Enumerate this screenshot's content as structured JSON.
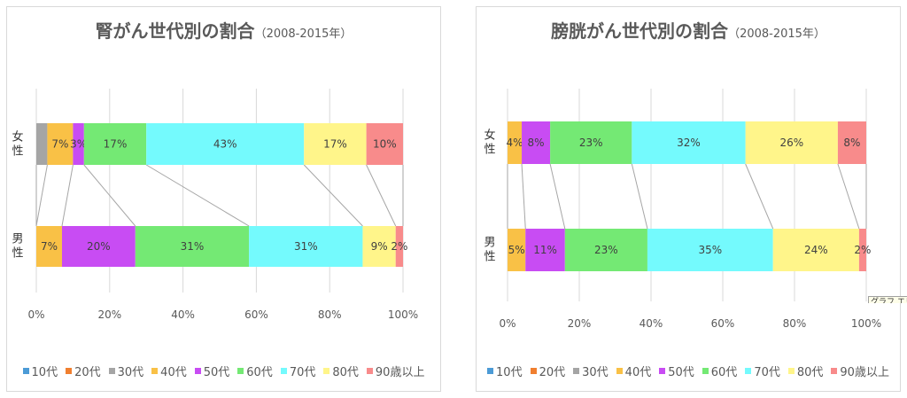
{
  "chart_data": [
    {
      "type": "bar",
      "orientation": "horizontal",
      "stacking": "percent",
      "title": "腎がん世代別の割合",
      "subtitle": "（2008-2015年）",
      "categories": [
        "女性",
        "男性"
      ],
      "xlim": [
        0,
        100
      ],
      "x_tick_labels": [
        "0%",
        "20%",
        "40%",
        "60%",
        "80%",
        "100%"
      ],
      "grid": "vertical",
      "series_lines": true,
      "legend_position": "bottom",
      "series": [
        {
          "name": "10代",
          "color": "#4c9bd6",
          "values": [
            0,
            0
          ],
          "labels": [
            "",
            ""
          ]
        },
        {
          "name": "20代",
          "color": "#f07f2f",
          "values": [
            0,
            0
          ],
          "labels": [
            "",
            ""
          ]
        },
        {
          "name": "30代",
          "color": "#a5a5a5",
          "values": [
            3,
            0
          ],
          "labels": [
            "",
            ""
          ]
        },
        {
          "name": "40代",
          "color": "#f9c146",
          "values": [
            7,
            7
          ],
          "labels": [
            "7%",
            "7%"
          ]
        },
        {
          "name": "50代",
          "color": "#c84cf3",
          "values": [
            3,
            20
          ],
          "labels": [
            "3%",
            "20%"
          ]
        },
        {
          "name": "60代",
          "color": "#74e974",
          "values": [
            17,
            31
          ],
          "labels": [
            "17%",
            "31%"
          ]
        },
        {
          "name": "70代",
          "color": "#74fafd",
          "values": [
            43,
            31
          ],
          "labels": [
            "43%",
            "31%"
          ]
        },
        {
          "name": "80代",
          "color": "#fff58a",
          "values": [
            17,
            9
          ],
          "labels": [
            "17%",
            "9%"
          ]
        },
        {
          "name": "90歳以上",
          "color": "#f88b8b",
          "values": [
            10,
            2
          ],
          "labels": [
            "10%",
            "2%"
          ]
        }
      ]
    },
    {
      "type": "bar",
      "orientation": "horizontal",
      "stacking": "percent",
      "title": "膀胱がん世代別の割合",
      "subtitle": "（2008-2015年）",
      "categories": [
        "女性",
        "男性"
      ],
      "xlim": [
        0,
        100
      ],
      "x_tick_labels": [
        "0%",
        "20%",
        "40%",
        "60%",
        "80%",
        "100%"
      ],
      "grid": "vertical",
      "series_lines": true,
      "legend_position": "bottom",
      "series": [
        {
          "name": "10代",
          "color": "#4c9bd6",
          "values": [
            0,
            0
          ],
          "labels": [
            "",
            ""
          ]
        },
        {
          "name": "20代",
          "color": "#f07f2f",
          "values": [
            0,
            0
          ],
          "labels": [
            "",
            ""
          ]
        },
        {
          "name": "30代",
          "color": "#a5a5a5",
          "values": [
            0,
            0
          ],
          "labels": [
            "",
            ""
          ]
        },
        {
          "name": "40代",
          "color": "#f9c146",
          "values": [
            4,
            5
          ],
          "labels": [
            "4%",
            "5%"
          ]
        },
        {
          "name": "50代",
          "color": "#c84cf3",
          "values": [
            8,
            11
          ],
          "labels": [
            "8%",
            "11%"
          ]
        },
        {
          "name": "60代",
          "color": "#74e974",
          "values": [
            23,
            23
          ],
          "labels": [
            "23%",
            "23%"
          ]
        },
        {
          "name": "70代",
          "color": "#74fafd",
          "values": [
            32,
            35
          ],
          "labels": [
            "32%",
            "35%"
          ]
        },
        {
          "name": "80代",
          "color": "#fff58a",
          "values": [
            26,
            24
          ],
          "labels": [
            "26%",
            "24%"
          ]
        },
        {
          "name": "90歳以上",
          "color": "#f88b8b",
          "values": [
            8,
            2
          ],
          "labels": [
            "8%",
            "2%"
          ]
        }
      ]
    }
  ],
  "tooltip": "グラフ エリ"
}
